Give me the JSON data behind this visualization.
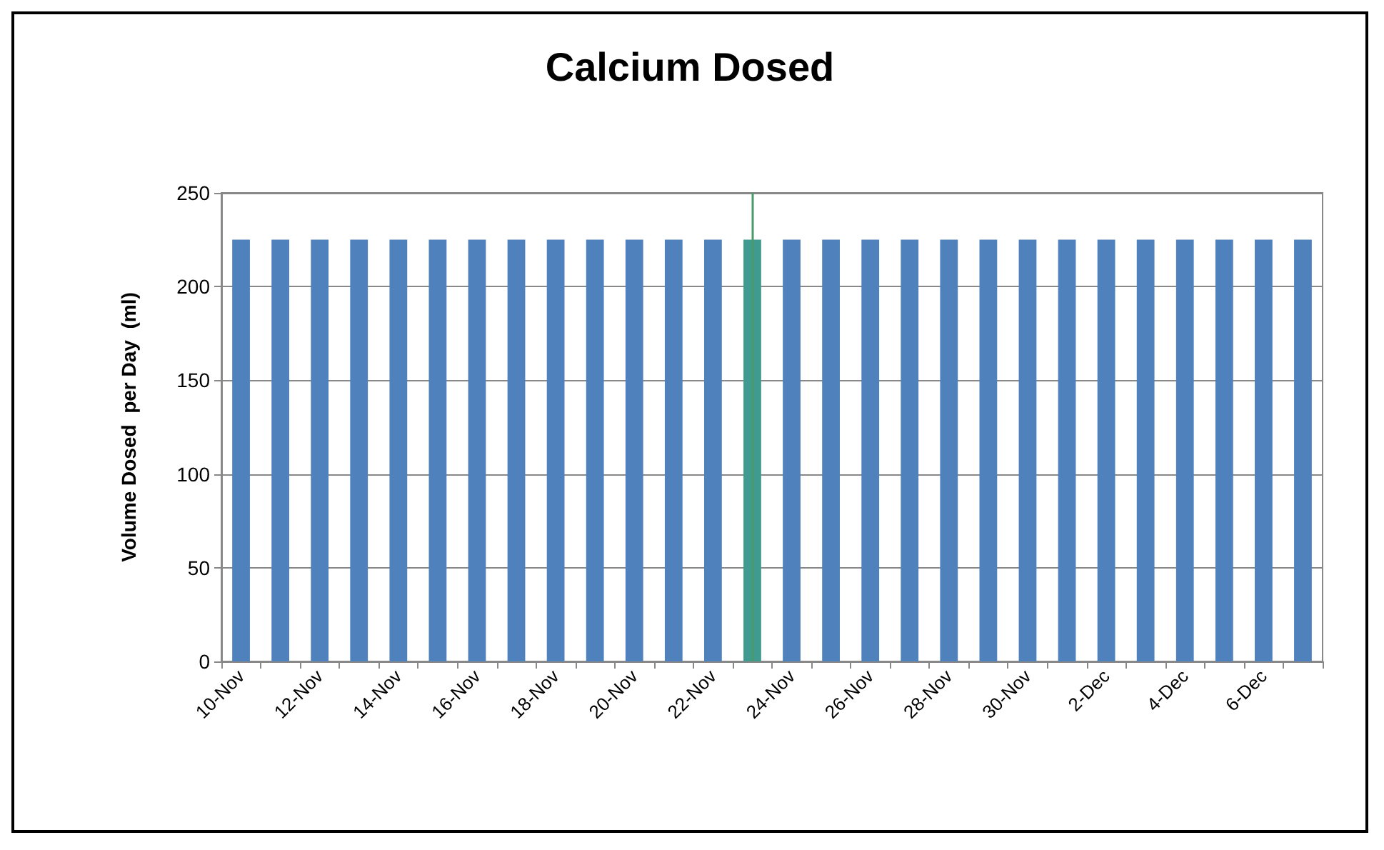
{
  "chart_data": {
    "type": "bar",
    "title": "Calcium Dosed",
    "ylabel": "Volume Dosed  per Day  (ml)",
    "categories": [
      "10-Nov",
      null,
      "12-Nov",
      null,
      "14-Nov",
      null,
      "16-Nov",
      null,
      "18-Nov",
      null,
      "20-Nov",
      null,
      "22-Nov",
      null,
      "24-Nov",
      null,
      "26-Nov",
      null,
      "28-Nov",
      null,
      "30-Nov",
      null,
      "2-Dec",
      null,
      "4-Dec",
      null,
      "6-Dec",
      null
    ],
    "values": [
      225,
      225,
      225,
      225,
      225,
      225,
      225,
      225,
      225,
      225,
      225,
      225,
      225,
      225,
      225,
      225,
      225,
      225,
      225,
      225,
      225,
      225,
      225,
      225,
      225,
      225,
      225,
      225
    ],
    "colors": [
      "#4f81bd",
      "#4f81bd",
      "#4f81bd",
      "#4f81bd",
      "#4f81bd",
      "#4f81bd",
      "#4f81bd",
      "#4f81bd",
      "#4f81bd",
      "#4f81bd",
      "#4f81bd",
      "#4f81bd",
      "#4f81bd",
      "#3f9a8f",
      "#4f81bd",
      "#4f81bd",
      "#4f81bd",
      "#4f81bd",
      "#4f81bd",
      "#4f81bd",
      "#4f81bd",
      "#4f81bd",
      "#4f81bd",
      "#4f81bd",
      "#4f81bd",
      "#4f81bd",
      "#4f81bd",
      "#4f81bd"
    ],
    "ylim": [
      0,
      250
    ],
    "yticks": [
      0,
      50,
      100,
      150,
      200,
      250
    ],
    "grid": "y"
  }
}
